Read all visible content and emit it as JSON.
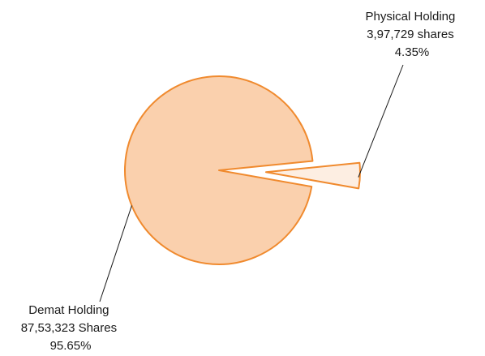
{
  "chart_data": {
    "type": "pie",
    "slices": [
      {
        "name": "Physical Holding",
        "value_label": "3,97,729 shares",
        "value": 397729,
        "percent": 4.35,
        "percent_label": "4.35%",
        "color": "#fdeee2",
        "stroke": "#f08a2e",
        "exploded": true
      },
      {
        "name": "Demat Holding",
        "value_label": "87,53,323 Shares",
        "value": 8753323,
        "percent": 95.65,
        "percent_label": "95.65%",
        "color": "#fad0ad",
        "stroke": "#f08a2e",
        "exploded": false
      }
    ],
    "legend": "none"
  }
}
